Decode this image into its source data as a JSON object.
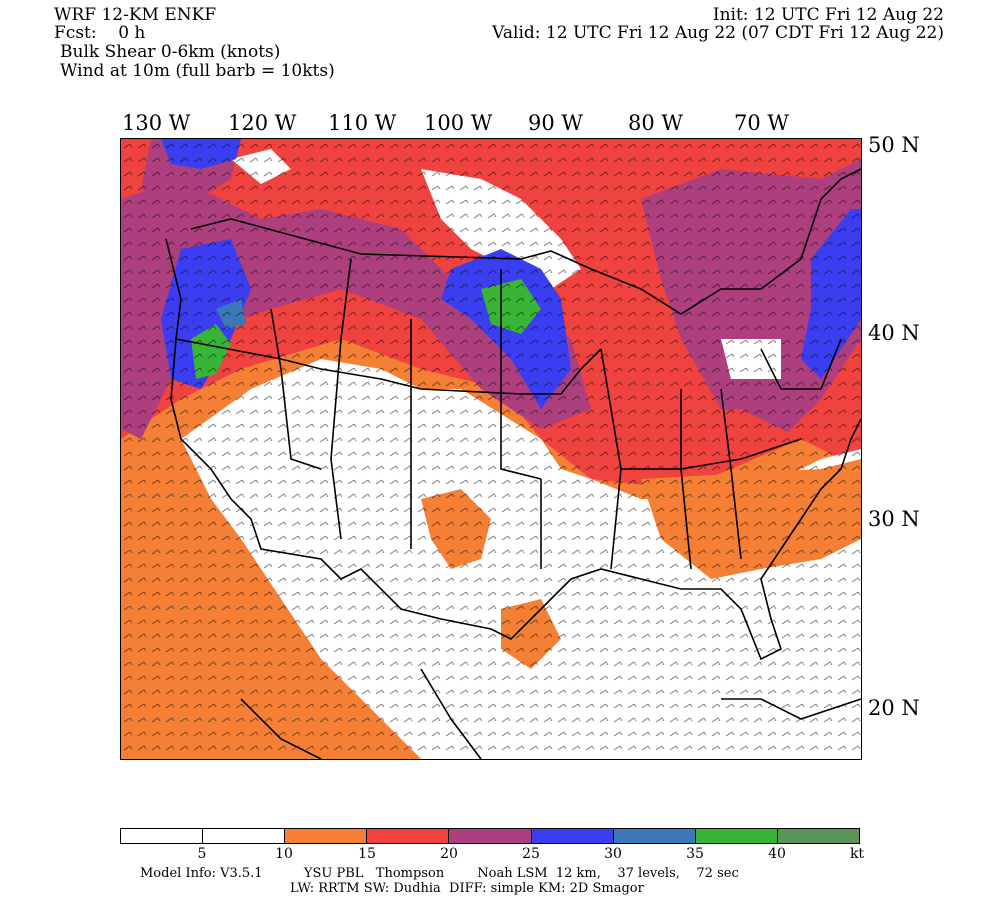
{
  "header": {
    "model": "WRF 12-KM ENKF",
    "fcst": "Fcst:    0 h",
    "variable": "Bulk Shear 0-6km (knots)",
    "wind": "Wind at 10m (full barb = 10kts)",
    "init": "Init: 12 UTC Fri 12 Aug 22",
    "valid": "Valid: 12 UTC Fri 12 Aug 22 (07 CDT Fri 12 Aug 22)"
  },
  "map": {
    "lon_labels": [
      "130 W",
      "120 W",
      "110 W",
      "100 W",
      "90 W",
      "80 W",
      "70 W"
    ],
    "lat_labels": [
      "50 N",
      "40 N",
      "30 N",
      "20 N"
    ],
    "shade_colors": {
      "lt5": "#ffffff",
      "5_10": "#ffffff",
      "10_15": "#f47f35",
      "15_20": "#f0423f",
      "20_25": "#ad3f7e",
      "25_30": "#3a3df0",
      "30_35": "#3a78b8",
      "35_40": "#38b437",
      "40_plus": "#5a9557"
    },
    "coastline_color": "#000000",
    "barb_color": "#000000"
  },
  "colorbar": {
    "colors": [
      "#ffffff",
      "#ffffff",
      "#f47f35",
      "#f0423f",
      "#ad3f7e",
      "#3a3df0",
      "#3a78b8",
      "#38b437",
      "#5a9557"
    ],
    "ticks": [
      "5",
      "10",
      "15",
      "20",
      "25",
      "30",
      "35",
      "40"
    ],
    "unit": "kt"
  },
  "footer": {
    "line1": "Model Info: V3.5.1          YSU PBL   Thompson        Noah LSM  12 km,    37 levels,    72 sec",
    "line2": "LW: RRTM SW: Dudhia  DIFF: simple KM: 2D Smagor"
  }
}
